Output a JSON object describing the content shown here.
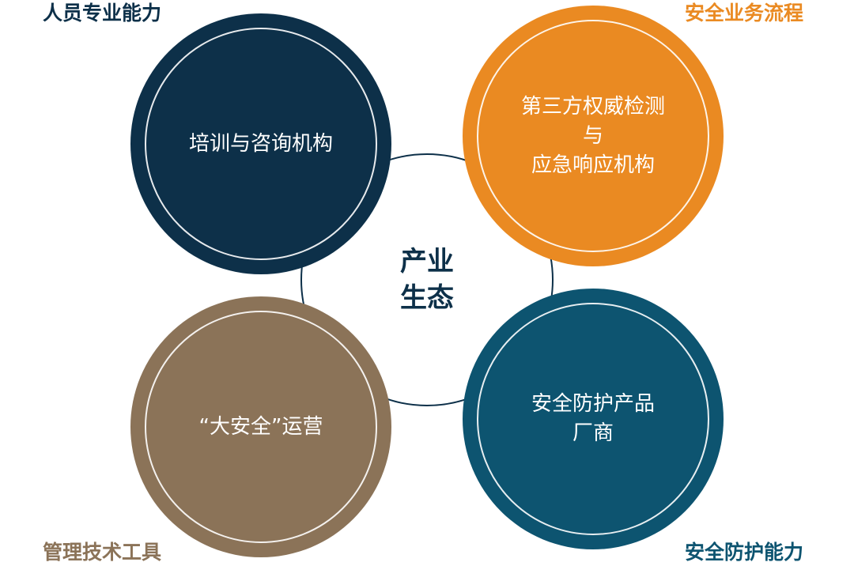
{
  "center": {
    "line1": "产业",
    "line2": "生态"
  },
  "corners": {
    "top_left": "人员专业能力",
    "top_right": "安全业务流程",
    "bottom_left": "管理技术工具",
    "bottom_right": "安全防护能力"
  },
  "nodes": {
    "top_left": {
      "lines": [
        "培训与咨询机构"
      ],
      "color": "#0d3049"
    },
    "top_right": {
      "lines": [
        "第三方权威检测",
        "与",
        "应急响应机构"
      ],
      "color": "#ea8a22"
    },
    "bottom_left": {
      "lines": [
        "“大安全”运营"
      ],
      "color": "#8b7358"
    },
    "bottom_right": {
      "lines": [
        "安全防护产品",
        "厂商"
      ],
      "color": "#0d5470"
    }
  },
  "colors": {
    "navy": "#0d3049",
    "orange": "#ea8a22",
    "brown": "#8b7358",
    "teal": "#0d5470"
  }
}
